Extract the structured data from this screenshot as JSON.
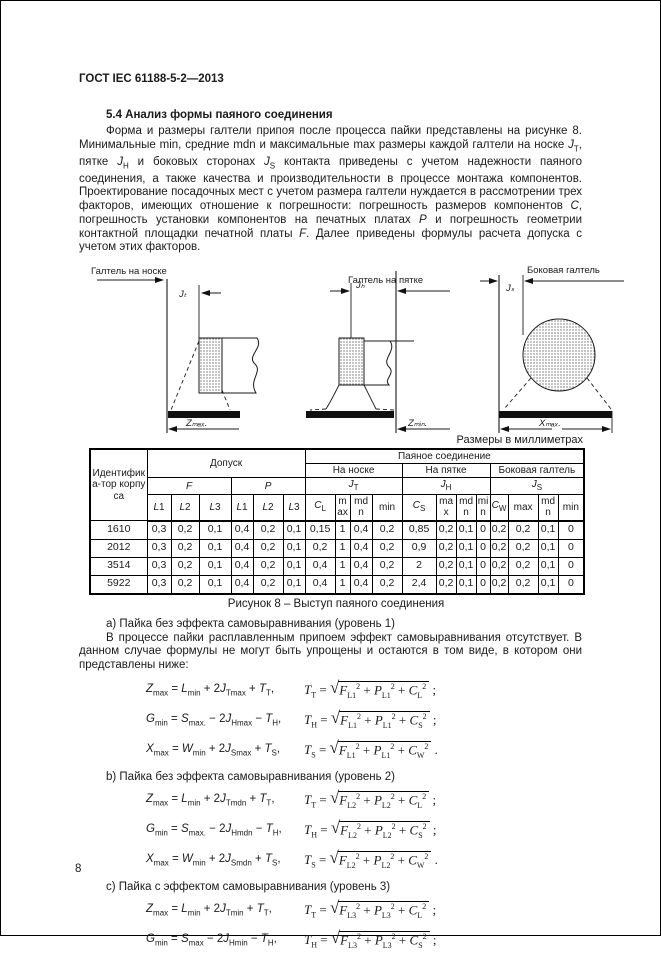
{
  "page": {
    "doc_code": "ГОСТ IEC 61188-5-2—2013",
    "page_number": "8"
  },
  "section": {
    "heading": "5.4 Анализ формы паяного соединения",
    "intro": "Форма и размеры галтели припоя после процесса пайки представлены на рисунке 8. Минимальные min, средние mdn и максимальные max размеры каждой галтели на носке *{J}_{Т}, пятке *{J}_{Н} и боковых сторонах *{J}_{S} контакта приведены с учетом надежности паяного соединения, а также качества и производительности в процессе монтажа компонентов. Проектирование посадочных мест с учетом размера галтели нуждается в рассмотрении трех факторов, имеющих отношение к погрешности: погрешность размеров компонентов *{C}, погрешность установки компонентов на печатных платах *{P} и погрешность геометрии контактной площадки печатной платы *{F}. Далее приведены формулы расчета допуска с учетом этих факторов."
  },
  "figure": {
    "caption": "Рисунок 8 – Выступ паяного соединения",
    "toe": {
      "title": "Галтель на носке",
      "j_label": "Jₜ",
      "dim_label": "Zₘₐₓ."
    },
    "heel": {
      "title": "Галтель на пятке",
      "j_label": "Jₕ",
      "dim_label": "Zₘᵢₙ."
    },
    "side": {
      "title": "Боковая галтель",
      "j_label": "Jₛ",
      "dim_label": "Xₘₐₓ."
    }
  },
  "table": {
    "units_note": "Размеры в миллиметрах",
    "id_header": "Идентифика-тор корпуса",
    "tolerance": "Допуск",
    "joint": "Паяное соединение",
    "toe": "На носке",
    "heel": "На пятке",
    "side": "Боковая галтель",
    "f": "*{F}",
    "p": "*{P}",
    "jt": "*{J}_{Т}",
    "jh": "*{J}_{Н}",
    "js": "*{J}_{S}",
    "leaf": [
      "*{L}1",
      "*{L}2",
      "*{L}3",
      "*{L}1",
      "*{L}2",
      "*{L}3",
      "*{C}_{L}",
      "max",
      "mdn",
      "min",
      "*{C}_{S}",
      "max",
      "mdn",
      "min",
      "*{C}_{W}",
      "max",
      "mdn",
      "min"
    ],
    "rows": [
      [
        "1610",
        "0,3",
        "0,2",
        "0,1",
        "0,4",
        "0,2",
        "0,1",
        "0,15",
        "1",
        "0,4",
        "0,2",
        "0,85",
        "0,2",
        "0,1",
        "0",
        "0,2",
        "0,2",
        "0,1",
        "0"
      ],
      [
        "2012",
        "0,3",
        "0,2",
        "0,1",
        "0,4",
        "0,2",
        "0,1",
        "0,2",
        "1",
        "0,4",
        "0,2",
        "0,9",
        "0,2",
        "0,1",
        "0",
        "0,2",
        "0,2",
        "0,1",
        "0"
      ],
      [
        "3514",
        "0,3",
        "0,2",
        "0,1",
        "0,4",
        "0,2",
        "0,1",
        "0,4",
        "1",
        "0,4",
        "0,2",
        "2",
        "0,2",
        "0,1",
        "0",
        "0,2",
        "0,2",
        "0,1",
        "0"
      ],
      [
        "5922",
        "0,3",
        "0,2",
        "0,1",
        "0,4",
        "0,2",
        "0,1",
        "0,4",
        "1",
        "0,4",
        "0,2",
        "2,4",
        "0,2",
        "0,1",
        "0",
        "0,2",
        "0,2",
        "0,1",
        "0"
      ]
    ]
  },
  "formulas": {
    "sections": [
      {
        "heading": "a)  Пайка без эффекта самовыравнивания (уровень 1)",
        "para": "В процессе пайки расплавленным припоем эффект самовыравнивания отсутствует. В данном случае формулы не могут быть упрощены и остаются в том виде, в котором они представлены ниже:",
        "rows": [
          {
            "left": "*{Z}_{max} = *{L}_{min} + 2*{J}_{Tmax} + *{T}_{T},",
            "right": "*{T}_{T} = #{*{F}_{L1}^{2} + *{P}_{L1}^{2} + *{C}_{L}^{2}} ;"
          },
          {
            "left": "*{G}_{min} = *{S}_{max.} − 2*{J}_{Hmax} − *{T}_{H},",
            "right": "*{T}_{H} = #{*{F}_{L1}^{2} + *{P}_{L1}^{2} + *{C}_{S}^{2}} ;"
          },
          {
            "left": "*{X}_{max} = *{W}_{min} + 2*{J}_{Smax} + *{T}_{S},",
            "right": "*{T}_{S} = #{*{F}_{L1}^{2} + *{P}_{L1}^{2} + *{C}_{W}^{2}} ."
          }
        ]
      },
      {
        "heading": "b)  Пайка без эффекта самовыравнивания (уровень 2)",
        "rows": [
          {
            "left": "*{Z}_{max} = *{L}_{min} + 2*{J}_{Tmdn} + *{T}_{T},",
            "right": "*{T}_{T} = #{*{F}_{L2}^{2} + *{P}_{L2}^{2} + *{C}_{L}^{2}} ;"
          },
          {
            "left": "*{G}_{min} = *{S}_{max.} − 2*{J}_{Hmdn} − *{T}_{H},",
            "right": "*{T}_{H} = #{*{F}_{L2}^{2} + *{P}_{L2}^{2} + *{C}_{S}^{2}} ;"
          },
          {
            "left": "*{X}_{max} = *{W}_{min} + 2*{J}_{Smdn} + *{T}_{S},",
            "right": "*{T}_{S} = #{*{F}_{L2}^{2} + *{P}_{L2}^{2} + *{C}_{W}^{2}} ."
          }
        ]
      },
      {
        "heading": "c)  Пайка с эффектом самовыравнивания (уровень 3)",
        "rows": [
          {
            "left": "*{Z}_{max} = *{L}_{min} + 2*{J}_{Tmin} + *{T}_{T},",
            "right": "*{T}_{T} = #{*{F}_{L3}^{2} + *{P}_{L3}^{2} + *{C}_{L}^{2}} ;"
          },
          {
            "left": "*{G}_{min} = *{S}_{max} − 2*{J}_{Hmin} − *{T}_{H},",
            "right": "*{T}_{H} = #{*{F}_{L3}^{2} + *{P}_{L3}^{2} + *{C}_{S}^{2}} ;"
          }
        ]
      }
    ]
  }
}
